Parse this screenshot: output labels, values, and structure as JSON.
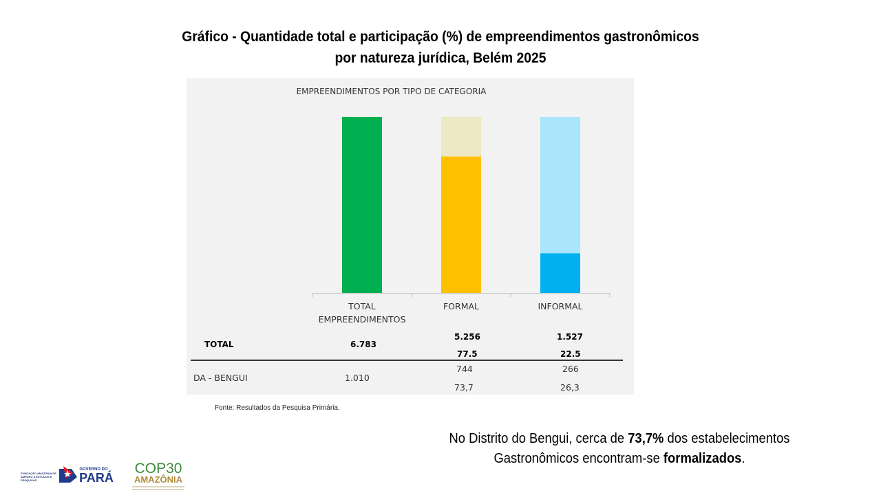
{
  "title": {
    "line1": "Gráfico - Quantidade total e participação (%) de empreendimentos gastronômicos",
    "line2": "por natureza jurídica, Belém 2025"
  },
  "chart_data": {
    "type": "bar",
    "title": "EMPREENDIMENTOS POR TIPO DE CATEGORIA",
    "categories": [
      "TOTAL EMPREENDIMENTOS",
      "FORMAL",
      "INFORMAL"
    ],
    "category_lines": [
      [
        "TOTAL",
        "EMPREENDIMENTOS"
      ],
      [
        "FORMAL"
      ],
      [
        "INFORMAL"
      ]
    ],
    "stacked_percent": [
      {
        "category": "TOTAL EMPREENDIMENTOS",
        "share": 100,
        "remainder": 0
      },
      {
        "category": "FORMAL",
        "share": 77.5,
        "remainder": 22.5
      },
      {
        "category": "INFORMAL",
        "share": 22.5,
        "remainder": 77.5
      }
    ],
    "colors": {
      "total": "#00b050",
      "formal": "#ffc000",
      "formal_light": "#eee9c4",
      "informal": "#00b0f0",
      "informal_light": "#a9e5fb"
    },
    "table": {
      "rows": [
        {
          "label": "TOTAL",
          "total": "6.783",
          "formal_count": "5.256",
          "formal_pct": "77.5",
          "informal_count": "1.527",
          "informal_pct": "22.5"
        },
        {
          "label": "DA - BENGUI",
          "total": "1.010",
          "formal_count": "744",
          "formal_pct": "73,7",
          "informal_count": "266",
          "informal_pct": "26,3"
        }
      ]
    },
    "ylim": [
      0,
      100
    ],
    "grid": false
  },
  "source": "Fonte: Resultados da Pesquisa Primária.",
  "note": {
    "part1": "No Distrito do Bengui, cerca de ",
    "highlight": "73,7%",
    "part2": " dos estabelecimentos",
    "part3": "Gastronômicos encontram-se ",
    "highlight2": "formalizados",
    "part4": "."
  },
  "logos": {
    "fapespa": "FUNDAÇÃO AMAZÔNIA DE AMPARO A ESTUDOS E PESQUISAS",
    "governo_top": "GOVERNO DO",
    "governo_main": "PARÁ",
    "cop_main": "COP30",
    "cop_sub": "AMAZÔNIA"
  }
}
